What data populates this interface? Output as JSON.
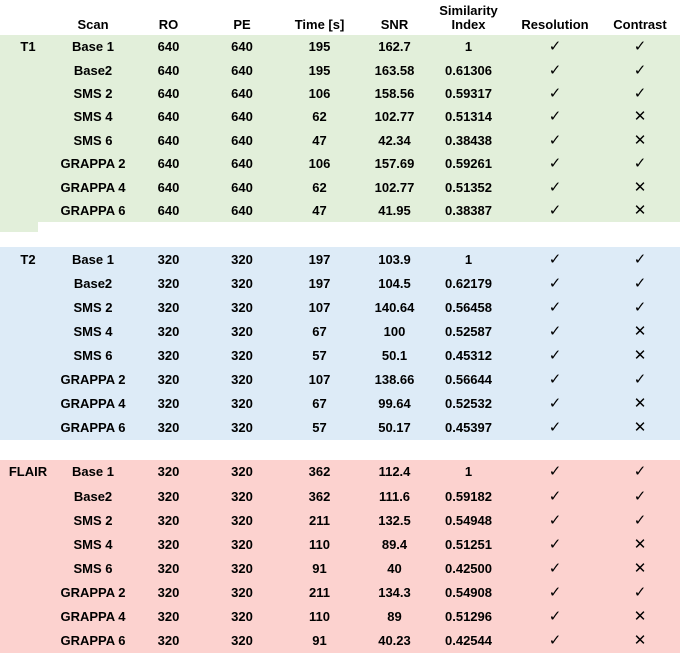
{
  "icons": {
    "check": "✓",
    "cross": "✕"
  },
  "colors": {
    "page_bg": "#ffffff",
    "text": "#000000"
  },
  "chart_data": {
    "type": "table",
    "columns": [
      {
        "key": "row-label",
        "label": ""
      },
      {
        "key": "scan",
        "label": "Scan"
      },
      {
        "key": "ro",
        "label": "RO"
      },
      {
        "key": "pe",
        "label": "PE"
      },
      {
        "key": "time",
        "label": "Time [s]"
      },
      {
        "key": "snr",
        "label": "SNR"
      },
      {
        "key": "similarity-index",
        "label": "Similarity Index"
      },
      {
        "key": "resolution",
        "label": "Resolution"
      },
      {
        "key": "contrast",
        "label": "Contrast"
      }
    ],
    "sections": [
      {
        "label": "T1",
        "bg": "#e2efda",
        "rows": [
          {
            "scan": "Base 1",
            "ro": "640",
            "pe": "640",
            "time": "195",
            "snr": "162.7",
            "similarity": "1",
            "resolution": true,
            "contrast": true
          },
          {
            "scan": "Base2",
            "ro": "640",
            "pe": "640",
            "time": "195",
            "snr": "163.58",
            "similarity": "0.61306",
            "resolution": true,
            "contrast": true
          },
          {
            "scan": "SMS 2",
            "ro": "640",
            "pe": "640",
            "time": "106",
            "snr": "158.56",
            "similarity": "0.59317",
            "resolution": true,
            "contrast": true
          },
          {
            "scan": "SMS 4",
            "ro": "640",
            "pe": "640",
            "time": "62",
            "snr": "102.77",
            "similarity": "0.51314",
            "resolution": true,
            "contrast": false
          },
          {
            "scan": "SMS 6",
            "ro": "640",
            "pe": "640",
            "time": "47",
            "snr": "42.34",
            "similarity": "0.38438",
            "resolution": true,
            "contrast": false
          },
          {
            "scan": "GRAPPA 2",
            "ro": "640",
            "pe": "640",
            "time": "106",
            "snr": "157.69",
            "similarity": "0.59261",
            "resolution": true,
            "contrast": true
          },
          {
            "scan": "GRAPPA 4",
            "ro": "640",
            "pe": "640",
            "time": "62",
            "snr": "102.77",
            "similarity": "0.51352",
            "resolution": true,
            "contrast": false
          },
          {
            "scan": "GRAPPA 6",
            "ro": "640",
            "pe": "640",
            "time": "47",
            "snr": "41.95",
            "similarity": "0.38387",
            "resolution": true,
            "contrast": false
          }
        ]
      },
      {
        "label": "T2",
        "bg": "#ddebf7",
        "rows": [
          {
            "scan": "Base 1",
            "ro": "320",
            "pe": "320",
            "time": "197",
            "snr": "103.9",
            "similarity": "1",
            "resolution": true,
            "contrast": true
          },
          {
            "scan": "Base2",
            "ro": "320",
            "pe": "320",
            "time": "197",
            "snr": "104.5",
            "similarity": "0.62179",
            "resolution": true,
            "contrast": true
          },
          {
            "scan": "SMS 2",
            "ro": "320",
            "pe": "320",
            "time": "107",
            "snr": "140.64",
            "similarity": "0.56458",
            "resolution": true,
            "contrast": true
          },
          {
            "scan": "SMS 4",
            "ro": "320",
            "pe": "320",
            "time": "67",
            "snr": "100",
            "similarity": "0.52587",
            "resolution": true,
            "contrast": false
          },
          {
            "scan": "SMS 6",
            "ro": "320",
            "pe": "320",
            "time": "57",
            "snr": "50.1",
            "similarity": "0.45312",
            "resolution": true,
            "contrast": false
          },
          {
            "scan": "GRAPPA 2",
            "ro": "320",
            "pe": "320",
            "time": "107",
            "snr": "138.66",
            "similarity": "0.56644",
            "resolution": true,
            "contrast": true
          },
          {
            "scan": "GRAPPA 4",
            "ro": "320",
            "pe": "320",
            "time": "67",
            "snr": "99.64",
            "similarity": "0.52532",
            "resolution": true,
            "contrast": false
          },
          {
            "scan": "GRAPPA 6",
            "ro": "320",
            "pe": "320",
            "time": "57",
            "snr": "50.17",
            "similarity": "0.45397",
            "resolution": true,
            "contrast": false
          }
        ]
      },
      {
        "label": "FLAIR",
        "bg": "#fcd2cf",
        "rows": [
          {
            "scan": "Base 1",
            "ro": "320",
            "pe": "320",
            "time": "362",
            "snr": "112.4",
            "similarity": "1",
            "resolution": true,
            "contrast": true
          },
          {
            "scan": "Base2",
            "ro": "320",
            "pe": "320",
            "time": "362",
            "snr": "111.6",
            "similarity": "0.59182",
            "resolution": true,
            "contrast": true
          },
          {
            "scan": "SMS 2",
            "ro": "320",
            "pe": "320",
            "time": "211",
            "snr": "132.5",
            "similarity": "0.54948",
            "resolution": true,
            "contrast": true
          },
          {
            "scan": "SMS 4",
            "ro": "320",
            "pe": "320",
            "time": "110",
            "snr": "89.4",
            "similarity": "0.51251",
            "resolution": true,
            "contrast": false
          },
          {
            "scan": "SMS 6",
            "ro": "320",
            "pe": "320",
            "time": "91",
            "snr": "40",
            "similarity": "0.42500",
            "resolution": true,
            "contrast": false
          },
          {
            "scan": "GRAPPA 2",
            "ro": "320",
            "pe": "320",
            "time": "211",
            "snr": "134.3",
            "similarity": "0.54908",
            "resolution": true,
            "contrast": true
          },
          {
            "scan": "GRAPPA 4",
            "ro": "320",
            "pe": "320",
            "time": "110",
            "snr": "89",
            "similarity": "0.51296",
            "resolution": true,
            "contrast": false
          },
          {
            "scan": "GRAPPA 6",
            "ro": "320",
            "pe": "320",
            "time": "91",
            "snr": "40.23",
            "similarity": "0.42544",
            "resolution": true,
            "contrast": false
          }
        ]
      }
    ]
  }
}
